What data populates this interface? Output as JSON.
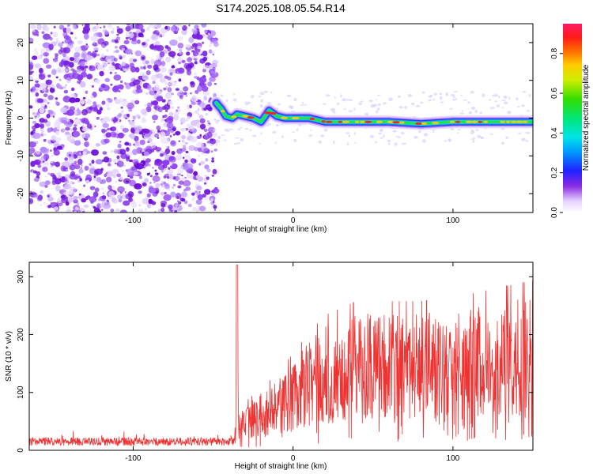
{
  "title": "S174.2025.108.05.54.R14",
  "chart_data": [
    {
      "type": "heatmap",
      "title": "S174.2025.108.05.54.R14",
      "xlabel": "Height of straight line (km)",
      "ylabel": "Frequency (Hz)",
      "xlim": [
        -165,
        150
      ],
      "ylim": [
        -25,
        25
      ],
      "xticks": [
        -100,
        0,
        100
      ],
      "yticks": [
        -20,
        -10,
        0,
        10,
        20
      ],
      "colorbar": {
        "label": "Normalized spectral amplitude",
        "range": [
          0,
          0.95
        ],
        "ticks": [
          0.0,
          0.2,
          0.4,
          0.6,
          0.8
        ]
      },
      "ridge": {
        "description_points_x": [
          -48,
          -45,
          -42,
          -38,
          -35,
          -30,
          -25,
          -20,
          -15,
          -10,
          -5,
          0,
          10,
          20,
          40,
          60,
          80,
          100,
          120,
          150
        ],
        "description_points_y": [
          4,
          2.5,
          0.5,
          0,
          1,
          0.5,
          0,
          -1,
          2,
          0.5,
          0,
          0,
          0,
          -1,
          -1,
          -1,
          -1.5,
          -1,
          -1,
          -1
        ]
      }
    },
    {
      "type": "line",
      "title": "",
      "xlabel": "Height of straight line (km)",
      "ylabel": "SNR (10 * v/v)",
      "xlim": [
        -165,
        150
      ],
      "ylim": [
        0,
        325
      ],
      "xticks": [
        -100,
        0,
        100
      ],
      "yticks": [
        0,
        100,
        200,
        300
      ],
      "series": [
        {
          "color": "#ee3333",
          "envelope_x": [
            -165,
            -120,
            -80,
            -40,
            -36,
            -35,
            -34,
            -30,
            -20,
            -10,
            0,
            10,
            20,
            30,
            40,
            50,
            60,
            80,
            100,
            120,
            150
          ],
          "envelope_y": [
            15,
            15,
            15,
            16,
            40,
            320,
            60,
            70,
            90,
            110,
            140,
            170,
            195,
            205,
            215,
            215,
            215,
            215,
            220,
            230,
            245
          ]
        }
      ]
    }
  ]
}
